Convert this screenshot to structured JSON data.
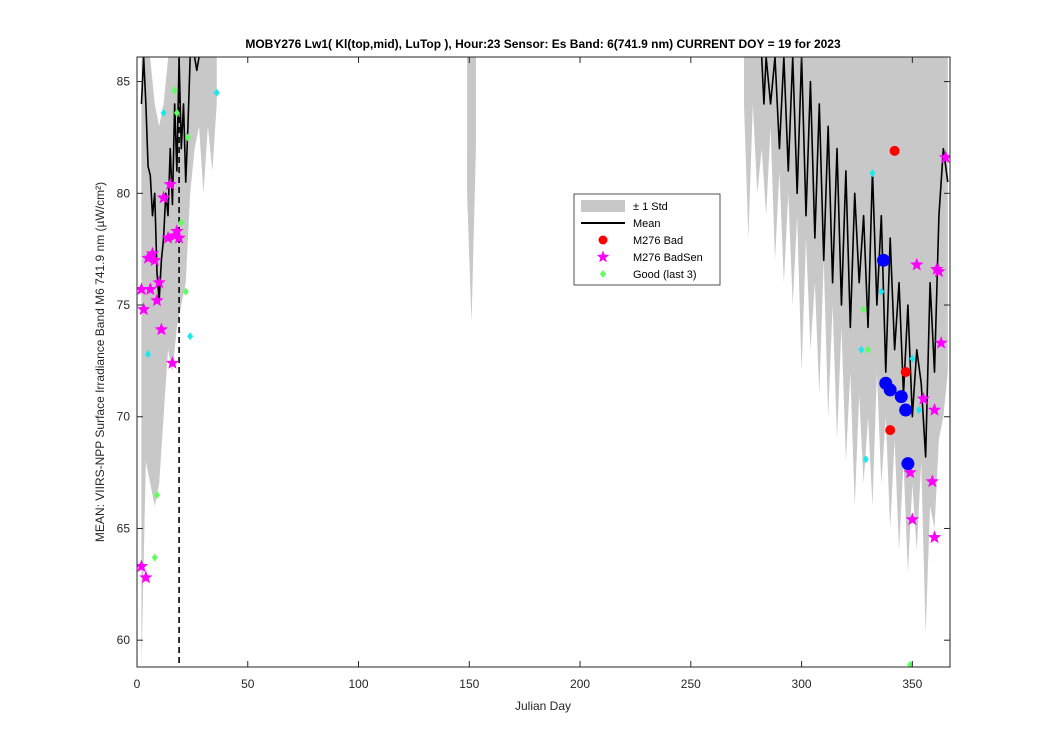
{
  "chart_data": {
    "type": "line",
    "title": "MOBY276   Lw1( Kl(top,mid), LuTop ),   Hour:23 Sensor: Es Band: 6(741.9 nm)   CURRENT DOY = 19 for 2023",
    "xlabel": "Julian Day",
    "ylabel": "MEAN: VIIRS-NPP Surface Irradiance Band M6 741.9 nm (µW/cm²)",
    "xlim": [
      0,
      367
    ],
    "ylim": [
      58.8,
      86.1
    ],
    "x_ticks": [
      0,
      50,
      100,
      150,
      200,
      250,
      300,
      350
    ],
    "y_ticks": [
      60,
      65,
      70,
      75,
      80,
      85
    ],
    "current_doy": 19,
    "grid": false,
    "legend_position": "center-right",
    "legend": [
      {
        "label": "± 1 Std",
        "kind": "band",
        "color": "#c8c8c8"
      },
      {
        "label": "Mean",
        "kind": "line",
        "color": "#000000"
      },
      {
        "label": "M276 Bad",
        "kind": "dot",
        "color": "#ff0000"
      },
      {
        "label": "M276 BadSen",
        "kind": "star",
        "color": "#ff00ff"
      },
      {
        "label": "Good (last 3)",
        "kind": "diamond",
        "color": "#5cff5c"
      }
    ],
    "std_band_segments": [
      [
        [
          2,
          90,
          58.8
        ],
        [
          4,
          88,
          68
        ],
        [
          6,
          86,
          67
        ],
        [
          8,
          84,
          66
        ],
        [
          10,
          83,
          67
        ],
        [
          12,
          84,
          70
        ],
        [
          14,
          86,
          73
        ],
        [
          16,
          88,
          72
        ],
        [
          18,
          90,
          74
        ],
        [
          20,
          90,
          75
        ],
        [
          22,
          90,
          76
        ],
        [
          24,
          90,
          80
        ],
        [
          26,
          90,
          82
        ],
        [
          28,
          86,
          83
        ],
        [
          30,
          90,
          80
        ],
        [
          32,
          90,
          83
        ],
        [
          34,
          90,
          81
        ],
        [
          36,
          87,
          84
        ]
      ],
      [
        [
          149,
          86.1,
          80
        ],
        [
          151,
          86.1,
          74.2
        ],
        [
          153,
          86.1,
          82
        ]
      ],
      [
        [
          274,
          86.1,
          84
        ],
        [
          276,
          86.1,
          78
        ],
        [
          278,
          86.1,
          84
        ],
        [
          280,
          86.1,
          80
        ],
        [
          282,
          86.1,
          82
        ],
        [
          284,
          86.1,
          79
        ],
        [
          286,
          86.1,
          83
        ],
        [
          288,
          86.1,
          77
        ],
        [
          290,
          86.1,
          81
        ],
        [
          292,
          86.1,
          76
        ],
        [
          294,
          86.1,
          80
        ],
        [
          296,
          86.1,
          75
        ],
        [
          298,
          86.1,
          79
        ],
        [
          300,
          86.1,
          72
        ],
        [
          302,
          86.1,
          78
        ],
        [
          304,
          86.1,
          73
        ],
        [
          306,
          86.1,
          76
        ],
        [
          308,
          86.1,
          71
        ],
        [
          310,
          86.1,
          77
        ],
        [
          312,
          86.1,
          70
        ],
        [
          314,
          86.1,
          75
        ],
        [
          316,
          86.1,
          69
        ],
        [
          318,
          86.1,
          74
        ],
        [
          320,
          86.1,
          68
        ],
        [
          322,
          86.1,
          72
        ],
        [
          324,
          86.1,
          66
        ],
        [
          326,
          86.1,
          71
        ],
        [
          328,
          86.1,
          67
        ],
        [
          330,
          86.1,
          70
        ],
        [
          332,
          86.1,
          66
        ],
        [
          334,
          86.1,
          72
        ],
        [
          336,
          86.1,
          67
        ],
        [
          338,
          86.1,
          70
        ],
        [
          340,
          86.1,
          65
        ],
        [
          342,
          86.1,
          69
        ],
        [
          344,
          86.1,
          64
        ],
        [
          346,
          86.1,
          68
        ],
        [
          348,
          86.1,
          63
        ],
        [
          350,
          86.1,
          67
        ],
        [
          352,
          86.1,
          64
        ],
        [
          354,
          86.1,
          68
        ],
        [
          356,
          86.1,
          60.3
        ],
        [
          358,
          86.1,
          66
        ],
        [
          360,
          86.1,
          65
        ],
        [
          362,
          86.1,
          69
        ],
        [
          364,
          86.1,
          70
        ],
        [
          366,
          86.1,
          72
        ]
      ]
    ],
    "mean_segments": [
      [
        [
          2,
          84
        ],
        [
          3,
          86.1
        ],
        [
          4,
          84
        ],
        [
          5,
          81.2
        ],
        [
          6,
          80.8
        ],
        [
          7,
          79
        ],
        [
          8,
          80
        ],
        [
          9,
          76.5
        ],
        [
          10,
          75.2
        ],
        [
          11,
          77
        ],
        [
          12,
          78
        ],
        [
          13,
          80
        ],
        [
          14,
          79
        ],
        [
          15,
          82
        ],
        [
          16,
          79.5
        ],
        [
          17,
          84
        ],
        [
          18,
          81
        ],
        [
          19,
          86
        ],
        [
          20,
          82
        ],
        [
          21,
          84
        ],
        [
          22,
          80.5
        ],
        [
          23,
          83
        ],
        [
          24,
          86.1
        ]
      ],
      [
        [
          26,
          86.1
        ],
        [
          27,
          85.5
        ],
        [
          28,
          86.1
        ]
      ],
      [
        [
          282,
          86.1
        ],
        [
          283,
          84
        ],
        [
          284,
          86.1
        ],
        [
          286,
          84
        ],
        [
          288,
          86.1
        ],
        [
          290,
          82
        ],
        [
          292,
          86.1
        ],
        [
          294,
          81
        ],
        [
          296,
          86.1
        ],
        [
          298,
          80
        ],
        [
          300,
          86.1
        ],
        [
          302,
          79
        ],
        [
          304,
          85
        ],
        [
          306,
          78
        ],
        [
          308,
          84
        ],
        [
          310,
          77
        ],
        [
          312,
          83
        ],
        [
          314,
          76
        ],
        [
          316,
          82
        ],
        [
          318,
          75
        ],
        [
          320,
          81
        ],
        [
          322,
          74
        ],
        [
          324,
          80
        ],
        [
          326,
          76
        ],
        [
          328,
          79
        ],
        [
          330,
          74
        ],
        [
          332,
          81
        ],
        [
          334,
          75
        ],
        [
          336,
          79
        ],
        [
          338,
          72
        ],
        [
          340,
          78
        ],
        [
          342,
          73
        ],
        [
          344,
          76
        ],
        [
          346,
          71
        ],
        [
          348,
          75
        ],
        [
          350,
          70
        ],
        [
          352,
          73
        ],
        [
          354,
          71.5
        ],
        [
          356,
          68.2
        ],
        [
          358,
          76
        ],
        [
          360,
          72
        ],
        [
          362,
          79
        ],
        [
          364,
          82
        ],
        [
          366,
          80.5
        ]
      ]
    ],
    "bad_points": [
      [
        342,
        81.9
      ],
      [
        347,
        72
      ],
      [
        340,
        69.4
      ]
    ],
    "badsen_points": [
      [
        2,
        75.7
      ],
      [
        3,
        74.8
      ],
      [
        5,
        77.1
      ],
      [
        6,
        75.7
      ],
      [
        7,
        77.3
      ],
      [
        8,
        77
      ],
      [
        9,
        75.2
      ],
      [
        10,
        76
      ],
      [
        11,
        73.9
      ],
      [
        12,
        79.8
      ],
      [
        14,
        78
      ],
      [
        15,
        80.4
      ],
      [
        16,
        72.4
      ],
      [
        17,
        78.1
      ],
      [
        18,
        78.3
      ],
      [
        19,
        78
      ],
      [
        2,
        63.3
      ],
      [
        4,
        62.8
      ],
      [
        352,
        76.8
      ],
      [
        355,
        70.8
      ],
      [
        359,
        67.1
      ],
      [
        360,
        70.3
      ],
      [
        361,
        76.6
      ],
      [
        362,
        76.5
      ],
      [
        363,
        73.3
      ],
      [
        365,
        81.6
      ],
      [
        349,
        67.5
      ],
      [
        350,
        65.4
      ],
      [
        360,
        64.6
      ]
    ],
    "good_points": [
      [
        17,
        84.6
      ],
      [
        18,
        83.6
      ],
      [
        20,
        78.7
      ],
      [
        22,
        75.6
      ],
      [
        23,
        82.5
      ],
      [
        8,
        63.7
      ],
      [
        9,
        66.5
      ],
      [
        328,
        74.8
      ],
      [
        330,
        73
      ],
      [
        349,
        58.9
      ]
    ],
    "cyan_points": [
      [
        12,
        83.6
      ],
      [
        5,
        72.8
      ],
      [
        24,
        73.6
      ],
      [
        36,
        84.5
      ],
      [
        332,
        80.9
      ],
      [
        336,
        75.6
      ],
      [
        327,
        73
      ],
      [
        329,
        68.1
      ],
      [
        350,
        72.6
      ],
      [
        353,
        70.3
      ]
    ],
    "blue_points": [
      [
        337,
        77
      ],
      [
        338,
        71.5
      ],
      [
        340,
        71.2
      ],
      [
        345,
        70.9
      ],
      [
        347,
        70.3
      ],
      [
        348,
        67.9
      ]
    ]
  }
}
